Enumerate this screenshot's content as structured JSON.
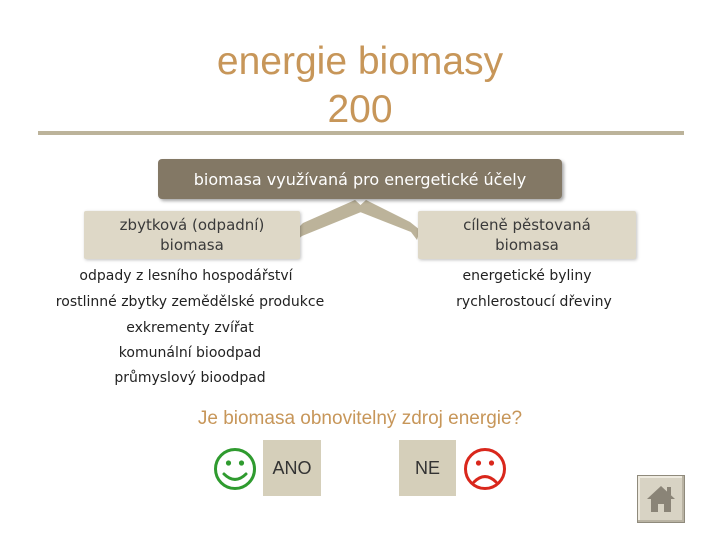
{
  "title": {
    "line1": "energie biomasy",
    "line2": "200"
  },
  "diagram": {
    "top": "biomasa využívaná pro energetické účely",
    "left_branch": {
      "line1": "zbytková (odpadní)",
      "line2": "biomasa"
    },
    "right_branch": {
      "line1": "cíleně pěstovaná",
      "line2": "biomasa"
    },
    "left_items": [
      "odpady z lesního hospodářství",
      "rostlinné zbytky zemědělské produkce",
      "exkrementy zvířat",
      "komunální bioodpad",
      "průmyslový bioodpad"
    ],
    "right_items": [
      "energetické byliny",
      "rychlerostoucí dřeviny"
    ]
  },
  "question": "Je biomasa obnovitelný zdroj energie?",
  "answers": {
    "yes": "ANO",
    "no": "NE"
  },
  "icons": {
    "yes": "smiley-happy-icon",
    "no": "smiley-sad-icon",
    "home": "home-icon"
  },
  "colors": {
    "title": "#c79659",
    "top_box": "#837865",
    "branch_box": "#ded8c7",
    "arrow": "#bcb39a",
    "happy": "#2f9b2f",
    "sad": "#d9271c"
  }
}
